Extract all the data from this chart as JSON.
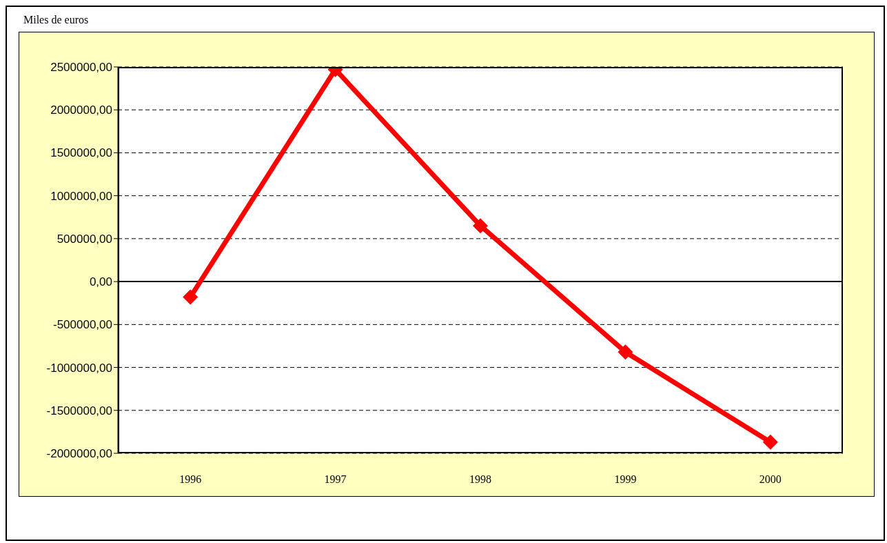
{
  "chart_data": {
    "type": "line",
    "ylabel": "Miles de euros",
    "categories": [
      "1996",
      "1997",
      "1998",
      "1999",
      "2000"
    ],
    "series": [
      {
        "color": "#ff0000",
        "values": [
          -180000,
          2470000,
          650000,
          -820000,
          -1870000
        ]
      }
    ],
    "ylim": [
      -2000000,
      2500000
    ],
    "yticks": [
      {
        "value": -2000000,
        "label": "-2000000,00"
      },
      {
        "value": -1500000,
        "label": "-1500000,00"
      },
      {
        "value": -1000000,
        "label": "-1000000,00"
      },
      {
        "value": -500000,
        "label": "-500000,00"
      },
      {
        "value": 0,
        "label": "0,00"
      },
      {
        "value": 500000,
        "label": "500000,00"
      },
      {
        "value": 1000000,
        "label": "1000000,00"
      },
      {
        "value": 1500000,
        "label": "1500000,00"
      },
      {
        "value": 2000000,
        "label": "2000000,00"
      },
      {
        "value": 2500000,
        "label": "2500000,00"
      }
    ],
    "grid": "y",
    "legend": false,
    "marker": "diamond",
    "line_style": "solid"
  }
}
